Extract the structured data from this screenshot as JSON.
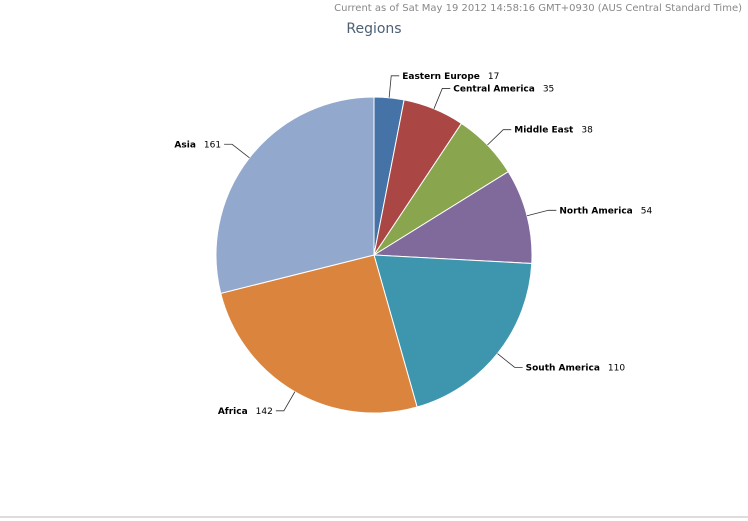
{
  "header": {
    "timestamp": "Current as of Sat May 19 2012 14:58:16 GMT+0930 (AUS Central Standard Time)"
  },
  "chart_data": {
    "type": "pie",
    "title": "Regions",
    "categories": [
      "Eastern Europe",
      "Central America",
      "Middle East",
      "North America",
      "South America",
      "Africa",
      "Asia"
    ],
    "values": [
      17,
      35,
      38,
      54,
      110,
      142,
      161
    ],
    "colors": [
      "#4572A7",
      "#AA4643",
      "#89A54E",
      "#80699B",
      "#3D96AE",
      "#DB843D",
      "#92A8CD"
    ]
  }
}
